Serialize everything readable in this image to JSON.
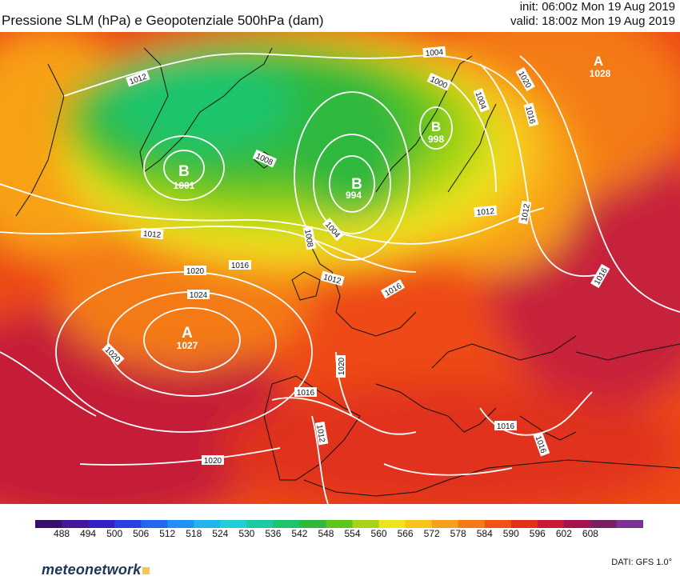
{
  "title": "Pressione SLM (hPa) e Geopotenziale 500hPa (dam)",
  "run_info": {
    "init": "init: 06:00z Mon 19 Aug 2019",
    "valid": "valid: 18:00z Mon 19 Aug 2019"
  },
  "map": {
    "pressure_centers": [
      {
        "symbol": "B",
        "value": "1001",
        "kind": "low"
      },
      {
        "symbol": "B",
        "value": "994",
        "kind": "low"
      },
      {
        "symbol": "B",
        "value": "998",
        "kind": "low"
      },
      {
        "symbol": "A",
        "value": "1027",
        "kind": "high"
      },
      {
        "symbol": "A",
        "value": "1028",
        "kind": "high"
      }
    ],
    "isobar_labels": [
      "1004",
      "1000",
      "1020",
      "1004",
      "1016",
      "1012",
      "1008",
      "1012",
      "1008",
      "1004",
      "1012",
      "1016",
      "1012",
      "1020",
      "1016",
      "1024",
      "1012",
      "1016",
      "1016",
      "1020",
      "1020",
      "1016",
      "1012",
      "1020",
      "1016",
      "1012"
    ]
  },
  "colorbar": {
    "ticks": [
      "488",
      "494",
      "500",
      "506",
      "512",
      "518",
      "524",
      "530",
      "536",
      "542",
      "548",
      "554",
      "560",
      "566",
      "572",
      "578",
      "584",
      "590",
      "596",
      "602",
      "608"
    ],
    "colors": [
      "#3a0d6b",
      "#47149b",
      "#3520c8",
      "#2a3fe0",
      "#2266f2",
      "#1f90f5",
      "#22b4ee",
      "#1fcfd5",
      "#1dc9a2",
      "#1ec46c",
      "#2fb83c",
      "#5ec41e",
      "#a6d316",
      "#eee41b",
      "#f8c31a",
      "#f8a019",
      "#f47a17",
      "#ee5313",
      "#e3301a",
      "#cc1a35",
      "#a2154e",
      "#781f66",
      "#7a3393"
    ]
  },
  "source": "DATI: GFS 1.0°",
  "brand": "meteonetwork"
}
